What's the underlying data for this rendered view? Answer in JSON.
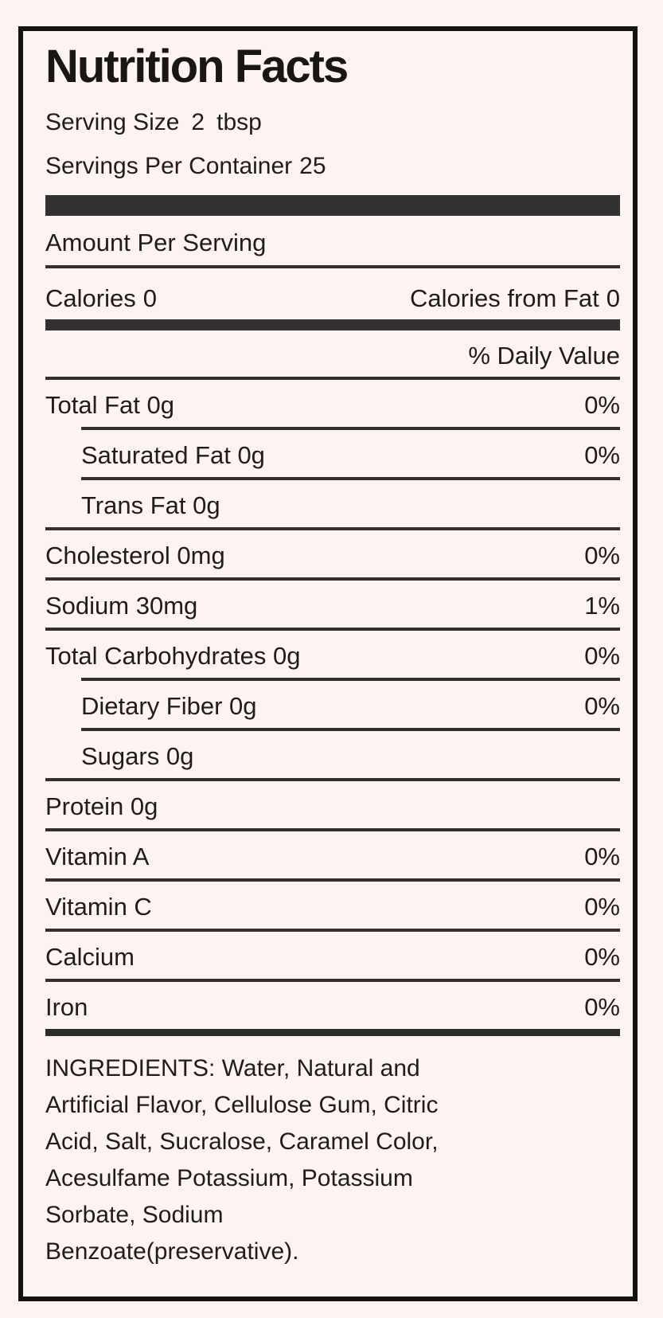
{
  "label": {
    "title": "Nutrition Facts",
    "serving_size": {
      "label": "Serving Size",
      "value": "2",
      "unit": "tbsp"
    },
    "servings_per_container": {
      "label": "Servings Per Container",
      "value": "25"
    },
    "amount_per_serving": "Amount Per Serving",
    "calories": {
      "label": "Calories",
      "value": "0"
    },
    "calories_from_fat": {
      "label": "Calories from Fat",
      "value": "0"
    },
    "daily_value_header": "% Daily Value",
    "nutrients": [
      {
        "name": "Total Fat 0g",
        "dv": "0%"
      },
      {
        "name": "Saturated Fat 0g",
        "dv": "0%"
      },
      {
        "name": "Trans Fat 0g",
        "dv": ""
      },
      {
        "name": "Cholesterol 0mg",
        "dv": "0%"
      },
      {
        "name": "Sodium 30mg",
        "dv": "1%"
      },
      {
        "name": "Total Carbohydrates 0g",
        "dv": "0%"
      },
      {
        "name": "Dietary Fiber 0g",
        "dv": "0%"
      },
      {
        "name": "Sugars 0g",
        "dv": ""
      },
      {
        "name": "Protein 0g",
        "dv": ""
      },
      {
        "name": "Vitamin A",
        "dv": "0%"
      },
      {
        "name": "Vitamin C",
        "dv": "0%"
      },
      {
        "name": "Calcium",
        "dv": "0%"
      },
      {
        "name": "Iron",
        "dv": "0%"
      }
    ],
    "ingredients_lines": [
      "INGREDIENTS: Water, Natural and",
      "Artificial Flavor, Cellulose Gum, Citric",
      "Acid, Salt, Sucralose, Caramel Color,",
      "Acesulfame Potassium, Potassium",
      "Sorbate, Sodium",
      "Benzoate(preservative)."
    ],
    "colors": {
      "background": "#fbf4f2",
      "text": "#211b19",
      "border": "#17120f",
      "bar": "#323030",
      "divider": "#342f2d"
    }
  }
}
